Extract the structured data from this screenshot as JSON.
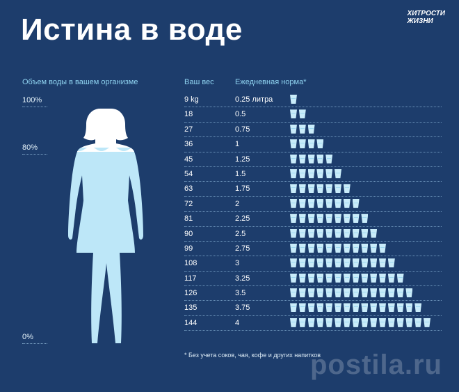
{
  "title": "Истина в воде",
  "brand": "ХИТРОСТИ\nЖИЗНИ",
  "left_heading": "Объем воды в вашем организме",
  "percent_labels": [
    "100%",
    "80%",
    "0%"
  ],
  "col_weight": "Ваш вес",
  "col_norm": "Ежедневная норма*",
  "rows": [
    {
      "weight": "9 kg",
      "norm": "0.25 литра",
      "cups": 1
    },
    {
      "weight": "18",
      "norm": "0.5",
      "cups": 2
    },
    {
      "weight": "27",
      "norm": "0.75",
      "cups": 3
    },
    {
      "weight": "36",
      "norm": "1",
      "cups": 4
    },
    {
      "weight": "45",
      "norm": "1.25",
      "cups": 5
    },
    {
      "weight": "54",
      "norm": "1.5",
      "cups": 6
    },
    {
      "weight": "63",
      "norm": "1.75",
      "cups": 7
    },
    {
      "weight": "72",
      "norm": "2",
      "cups": 8
    },
    {
      "weight": "81",
      "norm": "2.25",
      "cups": 9
    },
    {
      "weight": "90",
      "norm": "2.5",
      "cups": 10
    },
    {
      "weight": "99",
      "norm": "2.75",
      "cups": 11
    },
    {
      "weight": "108",
      "norm": "3",
      "cups": 12
    },
    {
      "weight": "117",
      "norm": "3.25",
      "cups": 13
    },
    {
      "weight": "126",
      "norm": "3.5",
      "cups": 14
    },
    {
      "weight": "135",
      "norm": "3.75",
      "cups": 15
    },
    {
      "weight": "144",
      "norm": "4",
      "cups": 16
    }
  ],
  "footnote": "* Без учета соков, чая, кофе и других напитков",
  "watermark": "postila.ru",
  "colors": {
    "background": "#1d3d6c",
    "water": "#c9ecfa",
    "accent": "#8fd3f0"
  }
}
